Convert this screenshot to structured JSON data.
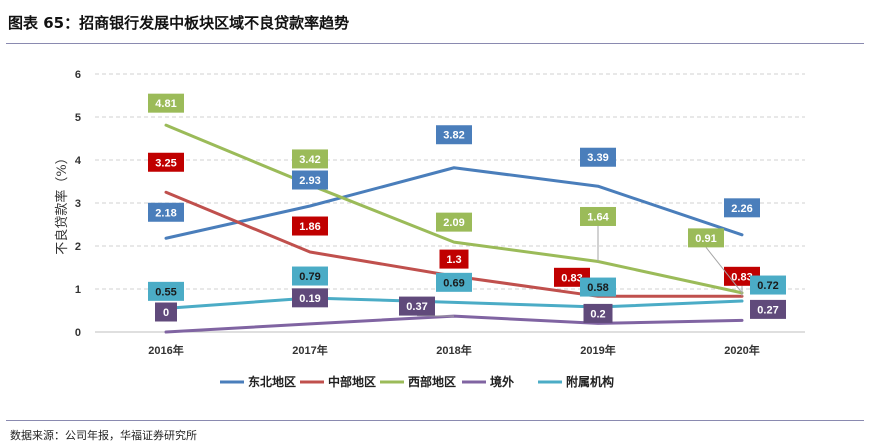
{
  "figure": {
    "title": "图表 65：招商银行发展中板块区域不良贷款率趋势",
    "source": "数据来源：公司年报，华福证券研究所"
  },
  "chart_data": {
    "type": "line",
    "ylabel": "不良贷款率（%）",
    "ylim": [
      0,
      6
    ],
    "yticks": [
      0,
      1,
      2,
      3,
      4,
      5,
      6
    ],
    "grid": true,
    "legend_position": "bottom",
    "categories": [
      "2016年",
      "2017年",
      "2018年",
      "2019年",
      "2020年"
    ],
    "series": [
      {
        "name": "东北地区",
        "color": "#4a7ebb",
        "text_color": "#ffffff",
        "values": [
          2.18,
          2.93,
          3.82,
          3.39,
          2.26
        ],
        "labels": [
          "2.18",
          "2.93",
          "3.82",
          "3.39",
          "2.26"
        ]
      },
      {
        "name": "中部地区",
        "color": "#c0504d",
        "label_bg": "#c00000",
        "text_color": "#ffffff",
        "values": [
          3.25,
          1.86,
          1.3,
          0.83,
          0.83
        ],
        "labels": [
          "3.25",
          "1.86",
          "1.3",
          "0.83",
          "0.83"
        ]
      },
      {
        "name": "西部地区",
        "color": "#9bbb59",
        "text_color": "#ffffff",
        "values": [
          4.81,
          3.42,
          2.09,
          1.64,
          0.91
        ],
        "labels": [
          "4.81",
          "3.42",
          "2.09",
          "1.64",
          "0.91"
        ]
      },
      {
        "name": "境外",
        "color": "#8064a2",
        "label_bg": "#604a7b",
        "text_color": "#ffffff",
        "values": [
          0,
          0.19,
          0.37,
          0.2,
          0.27
        ],
        "labels": [
          "0",
          "0.19",
          "0.37",
          "0.2",
          "0.27"
        ]
      },
      {
        "name": "附属机构",
        "color": "#4bacc6",
        "text_color": "#1a1a1a",
        "values": [
          0.55,
          0.79,
          0.69,
          0.58,
          0.72
        ],
        "labels": [
          "0.55",
          "0.79",
          "0.69",
          "0.58",
          "0.72"
        ]
      }
    ]
  }
}
